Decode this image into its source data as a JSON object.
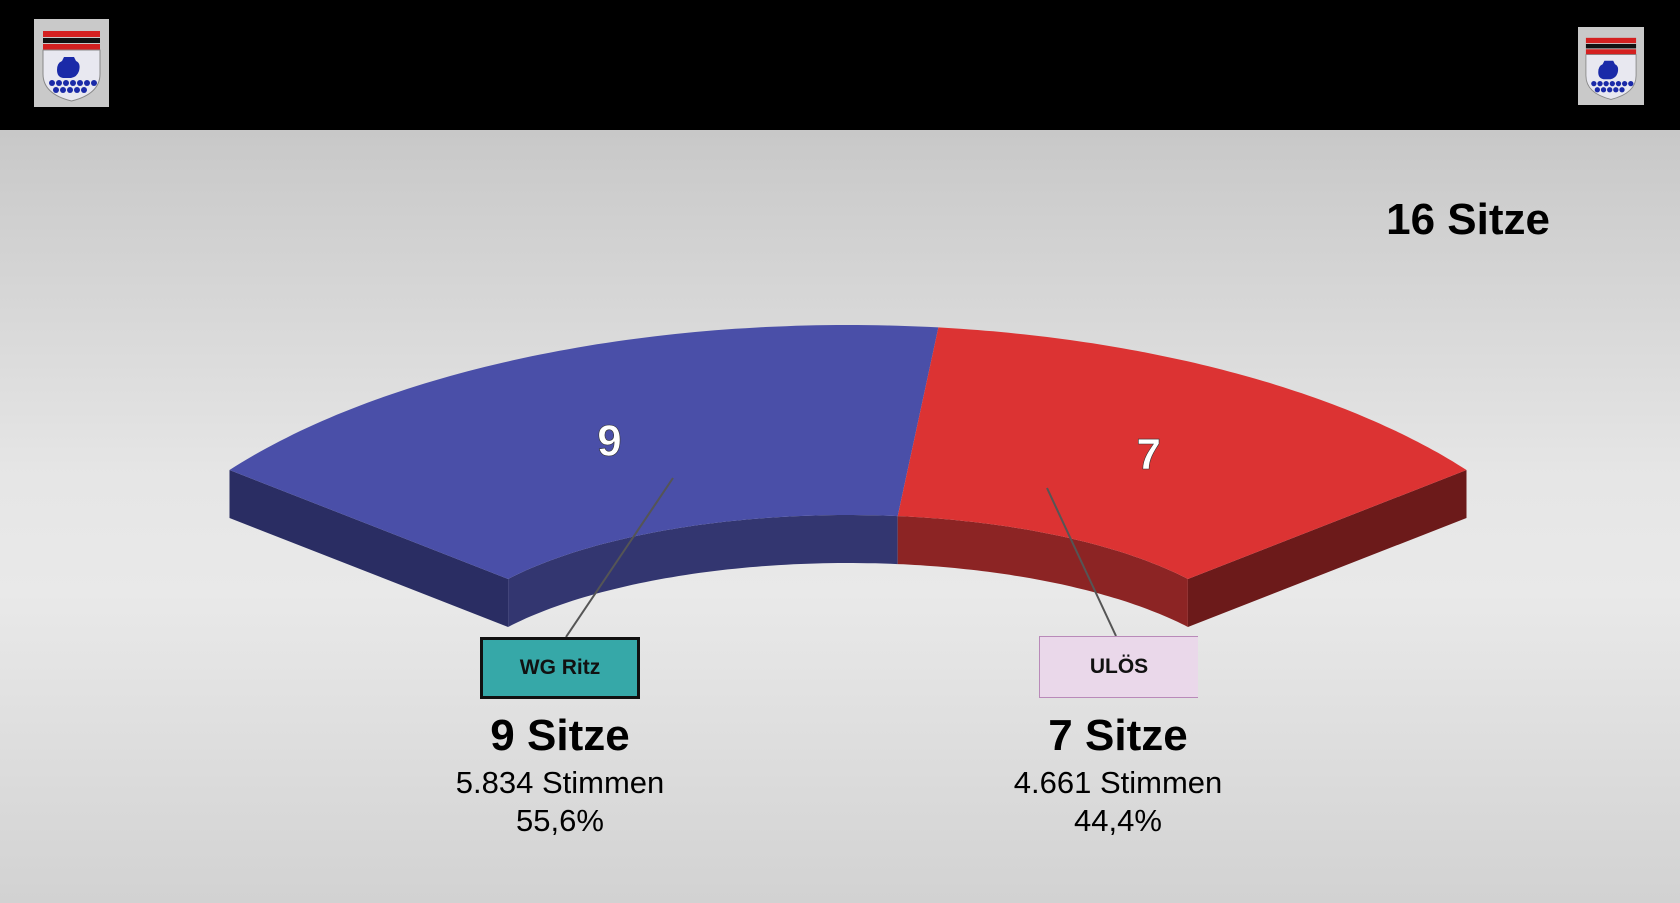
{
  "header": {
    "crest_left": "coat-of-arms",
    "crest_right": "coat-of-arms"
  },
  "total_seats_label": "16 Sitze",
  "chart_data": {
    "type": "pie",
    "title": "",
    "total_seats": 16,
    "slices": [
      {
        "label": "WG Ritz",
        "seats": 9,
        "seats_label": "9",
        "color": "#4a4fa8",
        "side_color": "#2a2d63",
        "inner_color": "#333670"
      },
      {
        "label": "ULÖS",
        "seats": 7,
        "seats_label": "7",
        "color": "#dc3333",
        "side_color": "#6c1a1a",
        "inner_color": "#8c2424"
      }
    ]
  },
  "parties": [
    {
      "name": "WG Ritz",
      "box_color": "#36a8a8",
      "seats_text": "9 Sitze",
      "votes_text": "5.834 Stimmen",
      "percent_text": "55,6%"
    },
    {
      "name": "ULÖS",
      "box_color": "#ead8ea",
      "seats_text": "7 Sitze",
      "votes_text": "4.661 Stimmen",
      "percent_text": "44,4%"
    }
  ]
}
